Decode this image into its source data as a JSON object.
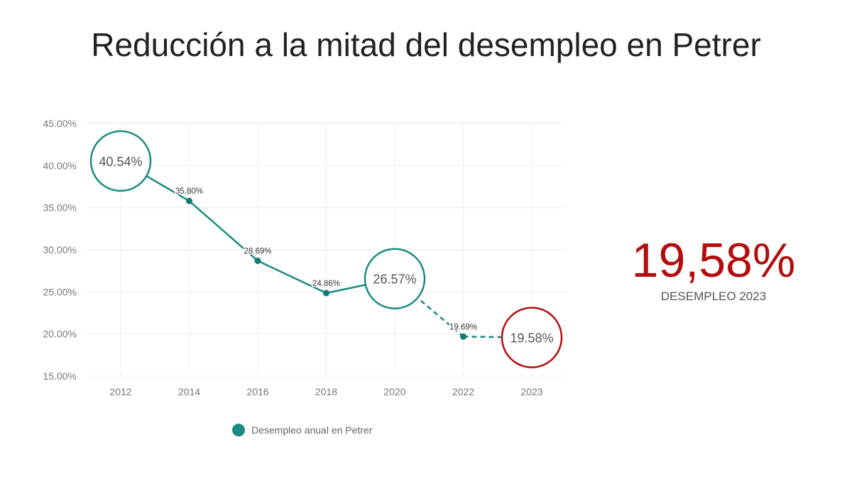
{
  "title": "Reducción a la mitad del desempleo en Petrer",
  "kpi": {
    "value": "19,58%",
    "label": "DESEMPLEO 2023"
  },
  "colors": {
    "line": "#1a8a82",
    "highlight": "#b30d0d",
    "grid": "#eeeeee",
    "axis_text": "#777777"
  },
  "chart_data": {
    "type": "line",
    "title": "Reducción a la mitad del desempleo en Petrer",
    "categories": [
      "2012",
      "2014",
      "2016",
      "2018",
      "2020",
      "2022",
      "2023"
    ],
    "series": [
      {
        "name": "Desempleo anual en Petrer",
        "values": [
          40.54,
          35.8,
          28.69,
          24.86,
          26.57,
          19.69,
          19.58
        ]
      }
    ],
    "data_labels": [
      "40.54%",
      "35.80%",
      "28.69%",
      "24.86%",
      "26.57%",
      "19.69%",
      "19.58%"
    ],
    "highlighted": [
      "2012",
      "2020",
      "2023"
    ],
    "dashed_from": "2020",
    "yticks": [
      "15.00%",
      "20.00%",
      "25.00%",
      "30.00%",
      "35.00%",
      "40.00%",
      "45.00%"
    ],
    "ylim": [
      15,
      45
    ],
    "grid": true,
    "legend": "bottom-center"
  }
}
